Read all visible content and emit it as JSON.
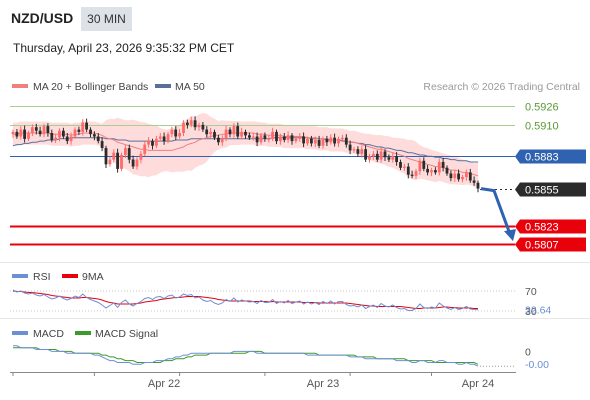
{
  "header": {
    "symbol": "NZD/USD",
    "timeframe": "30 MIN",
    "datetime": "Thursday, April 23, 2026 9:35:32 PM CET"
  },
  "legend": {
    "ma20": "MA 20 + Bollinger Bands",
    "ma50": "MA 50",
    "copyright": "Research © 2026 Trading Central",
    "rsi": "RSI",
    "rsi_ma": "9MA",
    "macd": "MACD",
    "macd_signal": "MACD Signal"
  },
  "colors": {
    "bull": "#ff6b6b",
    "bear": "#2b2b2b",
    "bands": "#ffd6d6",
    "ma20": "#f08080",
    "ma50": "#5a6e9c",
    "level_green": "#a8d08d",
    "level_blue": "#2f62b0",
    "level_red": "#e8000b",
    "current": "#2b2b2b",
    "rsi": "#6d8fd6",
    "rsi_ma": "#e8000b",
    "macd": "#6d8fd6",
    "macd_signal": "#3a9a2a"
  },
  "chart_data": [
    {
      "type": "candlestick",
      "title": "NZD/USD",
      "ylim": [
        0.5795,
        0.5935
      ],
      "x_labels": [
        "Apr 22",
        "Apr 23",
        "Apr 24"
      ],
      "levels": [
        {
          "value": 0.5926,
          "label": "0.5926",
          "style": "green"
        },
        {
          "value": 0.591,
          "label": "0.5910",
          "style": "green"
        },
        {
          "value": 0.5883,
          "label": "0.5883",
          "style": "blue"
        },
        {
          "value": 0.5855,
          "label": "0.5855",
          "style": "current"
        },
        {
          "value": 0.5823,
          "label": "0.5823",
          "style": "red"
        },
        {
          "value": 0.5807,
          "label": "0.5807",
          "style": "red"
        }
      ],
      "projection": {
        "from": 0.5855,
        "to": 0.5807
      },
      "series": [
        {
          "name": "Price",
          "close": [
            0.5904,
            0.59,
            0.5906,
            0.5898,
            0.5903,
            0.5908,
            0.5905,
            0.5902,
            0.5909,
            0.5903,
            0.5897,
            0.5899,
            0.5905,
            0.59,
            0.5896,
            0.59,
            0.5906,
            0.5904,
            0.5912,
            0.5906,
            0.5902,
            0.59,
            0.5896,
            0.589,
            0.5876,
            0.588,
            0.5886,
            0.5872,
            0.5884,
            0.589,
            0.588,
            0.5874,
            0.588,
            0.5885,
            0.5893,
            0.5896,
            0.5892,
            0.5898,
            0.59,
            0.5896,
            0.5902,
            0.5906,
            0.59,
            0.5903,
            0.5912,
            0.591,
            0.5914,
            0.5908,
            0.591,
            0.5906,
            0.5902,
            0.5904,
            0.5899,
            0.5895,
            0.5898,
            0.5906,
            0.5902,
            0.5909,
            0.59,
            0.5904,
            0.5901,
            0.5899,
            0.59,
            0.5895,
            0.5901,
            0.5898,
            0.5898,
            0.5904,
            0.5896,
            0.59,
            0.5897,
            0.5901,
            0.5896,
            0.5898,
            0.59,
            0.5894,
            0.5898,
            0.5894,
            0.5897,
            0.5892,
            0.5898,
            0.5895,
            0.5899,
            0.5894,
            0.5898,
            0.5899,
            0.5893,
            0.5888,
            0.5889,
            0.5885,
            0.5889,
            0.588,
            0.5883,
            0.5885,
            0.588,
            0.5887,
            0.5882,
            0.588,
            0.5883,
            0.5878,
            0.5873,
            0.5874,
            0.5867,
            0.5866,
            0.587,
            0.5879,
            0.5872,
            0.5869,
            0.5871,
            0.5869,
            0.5878,
            0.5873,
            0.5868,
            0.5864,
            0.5868,
            0.5863,
            0.5865,
            0.5869,
            0.5862,
            0.586,
            0.5855
          ]
        },
        {
          "name": "MA 20",
          "values": [
            0.5902,
            0.5902,
            0.5903,
            0.5903,
            0.5903,
            0.5903,
            0.5903,
            0.5903,
            0.5903,
            0.5903,
            0.5902,
            0.5902,
            0.5902,
            0.5902,
            0.5902,
            0.5901,
            0.5902,
            0.5902,
            0.5903,
            0.5903,
            0.5903,
            0.5903,
            0.5902,
            0.5901,
            0.5899,
            0.5898,
            0.5897,
            0.5895,
            0.5894,
            0.5893,
            0.5892,
            0.5891,
            0.589,
            0.5889,
            0.5889,
            0.5888,
            0.5888,
            0.5888,
            0.5888,
            0.5888,
            0.5888,
            0.5888,
            0.5889,
            0.589,
            0.5891,
            0.5893,
            0.5894,
            0.5895,
            0.5897,
            0.5898,
            0.5899,
            0.59,
            0.5901,
            0.5901,
            0.5902,
            0.5902,
            0.5903,
            0.5903,
            0.5903,
            0.5903,
            0.5903,
            0.5903,
            0.5903,
            0.5902,
            0.5902,
            0.5902,
            0.5901,
            0.5901,
            0.5901,
            0.5901,
            0.59,
            0.59,
            0.59,
            0.59,
            0.59,
            0.59,
            0.5899,
            0.5899,
            0.5899,
            0.5898,
            0.5898,
            0.5898,
            0.5897,
            0.5897,
            0.5897,
            0.5897,
            0.5896,
            0.5895,
            0.5895,
            0.5894,
            0.5893,
            0.5892,
            0.5891,
            0.589,
            0.5889,
            0.5889,
            0.5888,
            0.5887,
            0.5886,
            0.5885,
            0.5884,
            0.5883,
            0.5881,
            0.588,
            0.5879,
            0.5878,
            0.5877,
            0.5876,
            0.5875,
            0.5874,
            0.5874,
            0.5873,
            0.5872,
            0.5871,
            0.5871,
            0.587,
            0.5869,
            0.5869,
            0.5868,
            0.5867,
            0.5866
          ]
        },
        {
          "name": "MA 50",
          "values": [
            0.5892,
            0.5893,
            0.5893,
            0.5894,
            0.5894,
            0.5895,
            0.5895,
            0.5896,
            0.5896,
            0.5897,
            0.5897,
            0.5897,
            0.5898,
            0.5898,
            0.5898,
            0.5899,
            0.5899,
            0.5899,
            0.5899,
            0.5899,
            0.5899,
            0.5899,
            0.5899,
            0.5899,
            0.5898,
            0.5898,
            0.5898,
            0.5897,
            0.5897,
            0.5897,
            0.5896,
            0.5896,
            0.5896,
            0.5896,
            0.5896,
            0.5896,
            0.5896,
            0.5896,
            0.5896,
            0.5896,
            0.5896,
            0.5896,
            0.5897,
            0.5897,
            0.5897,
            0.5897,
            0.5898,
            0.5898,
            0.5898,
            0.5898,
            0.5898,
            0.5898,
            0.5898,
            0.5898,
            0.5898,
            0.5898,
            0.5898,
            0.5898,
            0.5898,
            0.5898,
            0.5898,
            0.5898,
            0.5898,
            0.5898,
            0.5898,
            0.5898,
            0.5898,
            0.5899,
            0.5899,
            0.5899,
            0.5899,
            0.5899,
            0.5899,
            0.5899,
            0.5899,
            0.5899,
            0.5899,
            0.5898,
            0.5898,
            0.5898,
            0.5898,
            0.5897,
            0.5897,
            0.5897,
            0.5897,
            0.5896,
            0.5896,
            0.5895,
            0.5895,
            0.5894,
            0.5894,
            0.5893,
            0.5893,
            0.5892,
            0.5891,
            0.5891,
            0.589,
            0.589,
            0.5889,
            0.5888,
            0.5888,
            0.5887,
            0.5886,
            0.5886,
            0.5885,
            0.5884,
            0.5884,
            0.5883,
            0.5883,
            0.5882,
            0.5882,
            0.5881,
            0.5881,
            0.588,
            0.588,
            0.5879,
            0.5879,
            0.5879,
            0.5878,
            0.5878,
            0.5878
          ]
        }
      ]
    },
    {
      "type": "line",
      "title": "RSI",
      "ylim": [
        20,
        80
      ],
      "reference_levels": [
        70,
        30
      ],
      "tick_labels": [
        "70",
        "30"
      ],
      "current_value_label": "32.64",
      "series": [
        {
          "name": "RSI",
          "values": [
            72,
            68,
            70,
            66,
            64,
            66,
            62,
            60,
            63,
            58,
            54,
            56,
            60,
            55,
            52,
            55,
            60,
            57,
            64,
            57,
            53,
            50,
            47,
            42,
            36,
            41,
            46,
            37,
            47,
            52,
            44,
            40,
            45,
            49,
            55,
            57,
            53,
            58,
            59,
            55,
            60,
            62,
            56,
            58,
            64,
            61,
            63,
            56,
            58,
            52,
            49,
            51,
            46,
            43,
            46,
            53,
            49,
            56,
            48,
            52,
            50,
            48,
            49,
            45,
            51,
            47,
            47,
            53,
            45,
            49,
            46,
            51,
            45,
            48,
            50,
            44,
            48,
            44,
            47,
            43,
            49,
            45,
            50,
            44,
            49,
            49,
            43,
            40,
            41,
            38,
            42,
            35,
            39,
            42,
            37,
            45,
            40,
            38,
            42,
            37,
            34,
            35,
            31,
            31,
            35,
            44,
            37,
            35,
            38,
            36,
            46,
            40,
            36,
            33,
            37,
            33,
            35,
            39,
            34,
            33,
            32.64
          ]
        },
        {
          "name": "9MA",
          "values": [
            70,
            69,
            69,
            68,
            67,
            67,
            66,
            65,
            64,
            63,
            61,
            60,
            59,
            58,
            57,
            56,
            56,
            56,
            57,
            57,
            56,
            55,
            54,
            52,
            49,
            47,
            46,
            44,
            44,
            44,
            44,
            44,
            45,
            46,
            48,
            49,
            50,
            51,
            53,
            54,
            55,
            56,
            57,
            57,
            58,
            59,
            59,
            59,
            59,
            58,
            57,
            56,
            55,
            53,
            52,
            51,
            50,
            50,
            50,
            50,
            50,
            50,
            49,
            49,
            49,
            49,
            48,
            49,
            48,
            48,
            48,
            48,
            48,
            48,
            48,
            47,
            47,
            47,
            47,
            46,
            46,
            46,
            46,
            46,
            46,
            46,
            46,
            45,
            44,
            43,
            42,
            41,
            40,
            40,
            39,
            39,
            39,
            39,
            39,
            39,
            39,
            38,
            37,
            36,
            35,
            35,
            36,
            36,
            36,
            36,
            37,
            38,
            38,
            37,
            37,
            36,
            36,
            36,
            36,
            35,
            35
          ]
        }
      ]
    },
    {
      "type": "line",
      "title": "MACD",
      "ylim": [
        -0.0009,
        0.0004
      ],
      "tick_labels": [
        "0"
      ],
      "current_value_label": "-0.00",
      "series": [
        {
          "name": "MACD",
          "values": [
            0.0003,
            0.0003,
            0.0002,
            0.0002,
            0.0002,
            0.0002,
            0.0001,
            0.0001,
            0.0001,
            0.0001,
            0.0,
            0.0,
            0.0,
            0.0,
            -0.0001,
            -0.0001,
            -0.0001,
            -0.0001,
            -0.0001,
            -0.0001,
            -0.0001,
            -0.0002,
            -0.0002,
            -0.0003,
            -0.0004,
            -0.0005,
            -0.0005,
            -0.0006,
            -0.0006,
            -0.0006,
            -0.0006,
            -0.0007,
            -0.0007,
            -0.0007,
            -0.0006,
            -0.0006,
            -0.0006,
            -0.0005,
            -0.0005,
            -0.0005,
            -0.0004,
            -0.0004,
            -0.0003,
            -0.0003,
            -0.0002,
            -0.0002,
            -0.0001,
            -0.0001,
            -0.0001,
            -0.0001,
            -0.0001,
            -0.0001,
            -0.0001,
            -0.0001,
            -0.0001,
            -0.0001,
            -0.0001,
            0.0,
            0.0,
            0.0,
            0.0,
            0.0,
            0.0,
            -0.0001,
            -0.0001,
            -0.0001,
            -0.0001,
            -0.0001,
            -0.0001,
            -0.0001,
            -0.0001,
            -0.0001,
            -0.0001,
            -0.0001,
            -0.0001,
            -0.0001,
            -0.0002,
            -0.0002,
            -0.0002,
            -0.0002,
            -0.0002,
            -0.0002,
            -0.0002,
            -0.0002,
            -0.0002,
            -0.0002,
            -0.0002,
            -0.0003,
            -0.0003,
            -0.0003,
            -0.0003,
            -0.0004,
            -0.0004,
            -0.0004,
            -0.0004,
            -0.0004,
            -0.0004,
            -0.0004,
            -0.0004,
            -0.0005,
            -0.0005,
            -0.0005,
            -0.0005,
            -0.0006,
            -0.0006,
            -0.0005,
            -0.0005,
            -0.0006,
            -0.0006,
            -0.0006,
            -0.0005,
            -0.0005,
            -0.0006,
            -0.0006,
            -0.0006,
            -0.0007,
            -0.0007,
            -0.0006,
            -0.0007,
            -0.0007,
            -0.0008
          ]
        },
        {
          "name": "MACD Signal",
          "values": [
            0.0002,
            0.0002,
            0.0002,
            0.0002,
            0.0002,
            0.0002,
            0.0002,
            0.0001,
            0.0001,
            0.0001,
            0.0001,
            0.0001,
            0.0,
            0.0,
            0.0,
            0.0,
            -0.0001,
            -0.0001,
            -0.0001,
            -0.0001,
            -0.0001,
            -0.0001,
            -0.0001,
            -0.0002,
            -0.0002,
            -0.0003,
            -0.0003,
            -0.0004,
            -0.0004,
            -0.0005,
            -0.0005,
            -0.0005,
            -0.0006,
            -0.0006,
            -0.0006,
            -0.0006,
            -0.0006,
            -0.0006,
            -0.0006,
            -0.0005,
            -0.0005,
            -0.0005,
            -0.0004,
            -0.0004,
            -0.0004,
            -0.0003,
            -0.0003,
            -0.0002,
            -0.0002,
            -0.0002,
            -0.0002,
            -0.0001,
            -0.0001,
            -0.0001,
            -0.0001,
            -0.0001,
            -0.0001,
            -0.0001,
            -0.0001,
            -0.0001,
            -0.0001,
            0.0,
            0.0,
            0.0,
            0.0,
            -0.0001,
            -0.0001,
            -0.0001,
            -0.0001,
            -0.0001,
            -0.0001,
            -0.0001,
            -0.0001,
            -0.0001,
            -0.0001,
            -0.0001,
            -0.0001,
            -0.0001,
            -0.0001,
            -0.0002,
            -0.0002,
            -0.0002,
            -0.0002,
            -0.0002,
            -0.0002,
            -0.0002,
            -0.0002,
            -0.0002,
            -0.0002,
            -0.0003,
            -0.0003,
            -0.0003,
            -0.0003,
            -0.0003,
            -0.0004,
            -0.0004,
            -0.0004,
            -0.0004,
            -0.0004,
            -0.0004,
            -0.0004,
            -0.0004,
            -0.0005,
            -0.0005,
            -0.0005,
            -0.0005,
            -0.0005,
            -0.0005,
            -0.0005,
            -0.0006,
            -0.0006,
            -0.0006,
            -0.0006,
            -0.0006,
            -0.0006,
            -0.0006,
            -0.0006,
            -0.0006,
            -0.0006,
            -0.0006,
            -0.0007
          ]
        }
      ]
    }
  ]
}
